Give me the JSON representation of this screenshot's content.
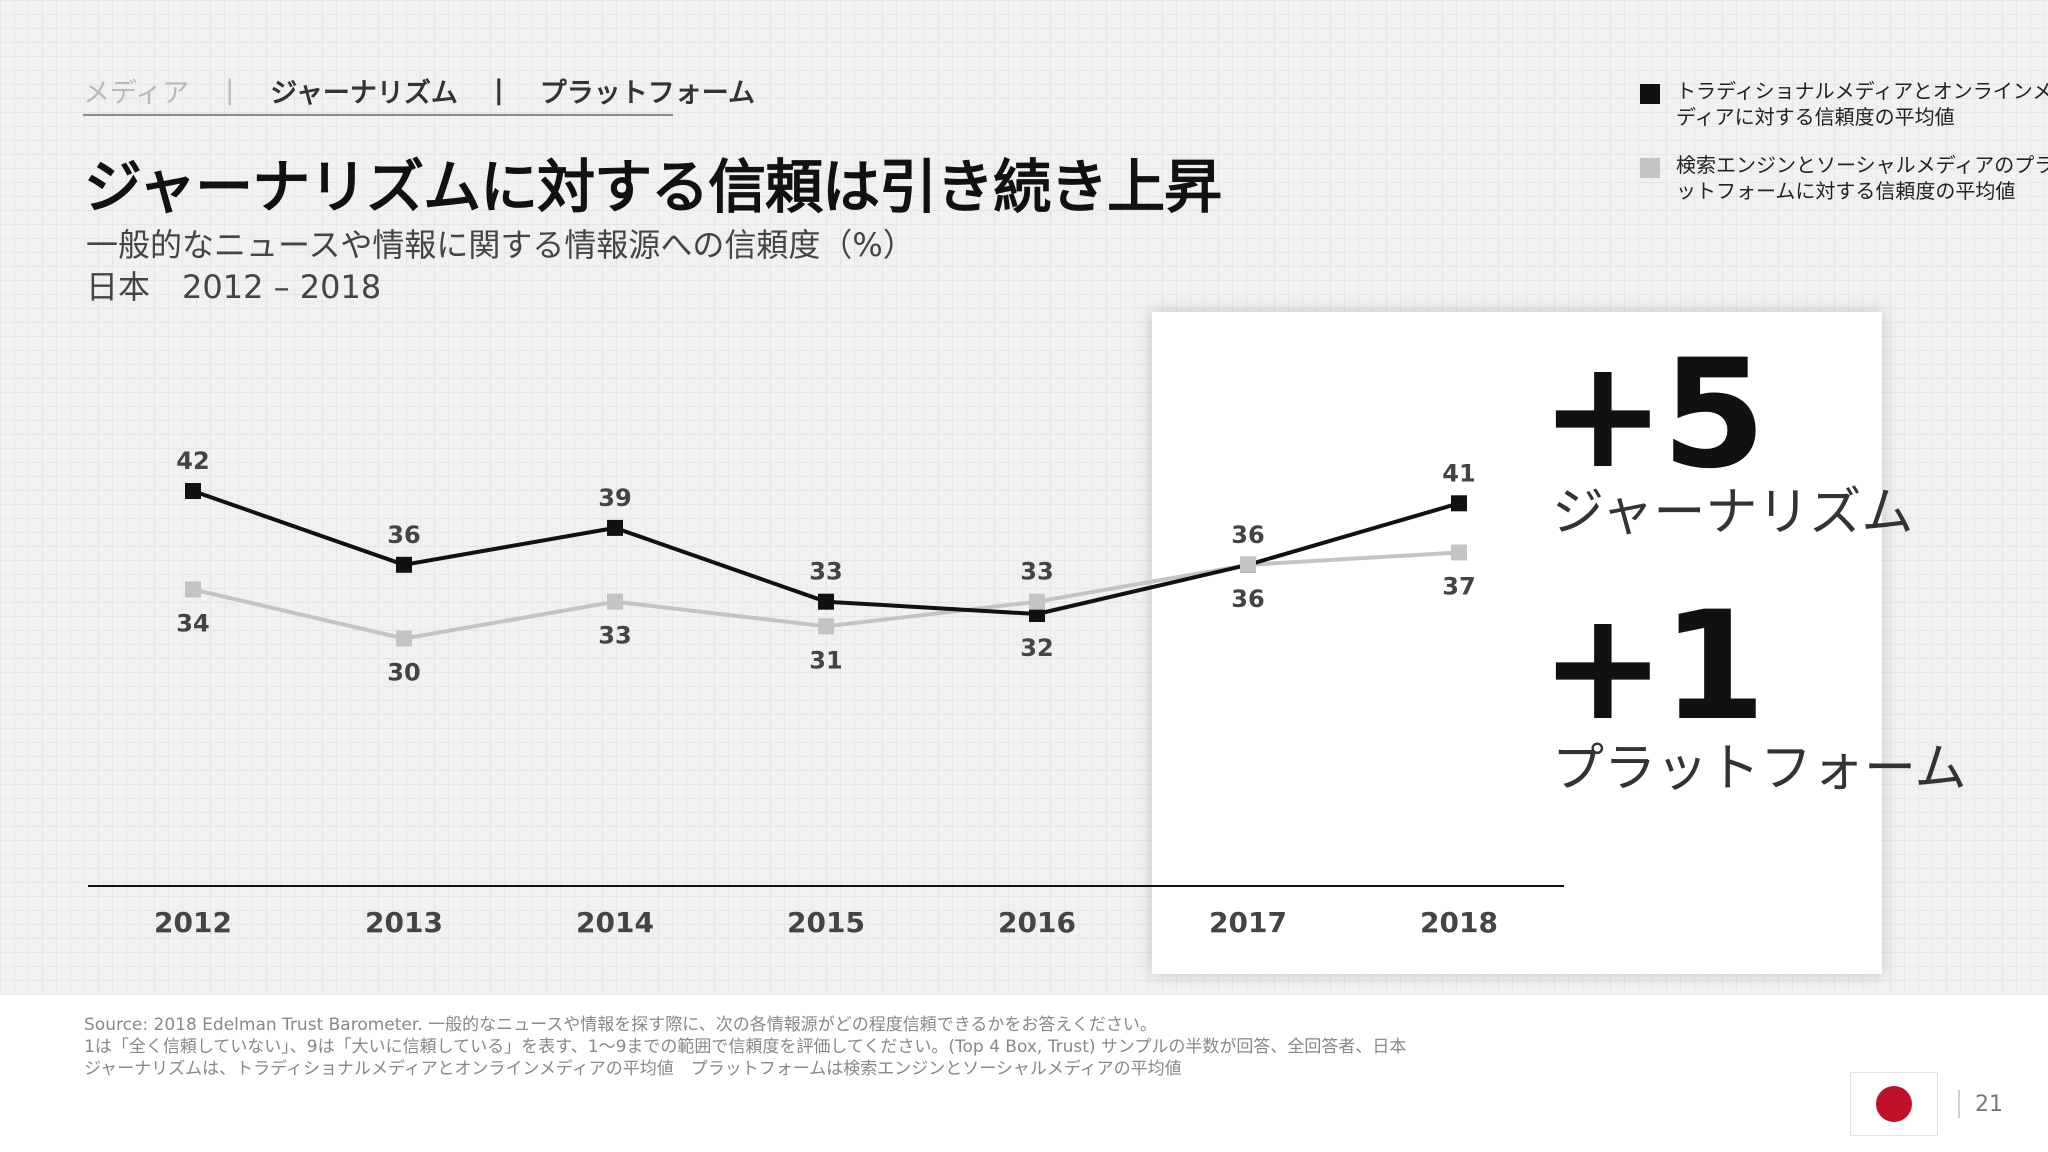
{
  "tabs": {
    "media": "メディア",
    "journalism": "ジャーナリズム",
    "platform": "プラットフォーム",
    "sep": "|"
  },
  "title": "ジャーナリズムに対する信頼は引き続き上昇",
  "subtitle_line1": "一般的なニュースや情報に関する情報源への信頼度（%）",
  "subtitle_line2": "日本　2012 – 2018",
  "legend": {
    "journalism_label": "トラディショナルメディアとオンラインメディアに対する信頼度の平均値",
    "platform_label": "検索エンジンとソーシャルメディアのプラットフォームに対する信頼度の平均値"
  },
  "callout": {
    "journalism_change": "+5",
    "journalism_label": "ジャーナリズム",
    "platform_change": "+1",
    "platform_label": "プラットフォーム"
  },
  "footer": {
    "line1": "Source: 2018 Edelman Trust Barometer. 一般的なニュースや情報を探す際に、次の各情報源がどの程度信頼できるかをお答えください。",
    "line2": "1は「全く信頼していない」、9は「大いに信頼している」を表す、1〜9までの範囲で信頼度を評価してください。(Top 4 Box, Trust) サンプルの半数が回答、全回答者、日本",
    "line3": "ジャーナリズムは、トラディショナルメディアとオンラインメディアの平均値　プラットフォームは検索エンジンとソーシャルメディアの平均値"
  },
  "page_number": "21",
  "colors": {
    "journalism": "#111111",
    "platform": "#c4c4c4",
    "flag": "#c0102a"
  },
  "chart_data": {
    "type": "line",
    "categories": [
      "2012",
      "2013",
      "2014",
      "2015",
      "2016",
      "2017",
      "2018"
    ],
    "series": [
      {
        "name": "トラディショナルメディアとオンラインメディアに対する信頼度の平均値",
        "values": [
          42,
          36,
          39,
          33,
          32,
          36,
          41
        ]
      },
      {
        "name": "検索エンジンとソーシャルメディアのプラットフォームに対する信頼度の平均値",
        "values": [
          34,
          30,
          33,
          31,
          33,
          36,
          37
        ]
      }
    ],
    "legend_position": "top-right",
    "grid": false
  }
}
